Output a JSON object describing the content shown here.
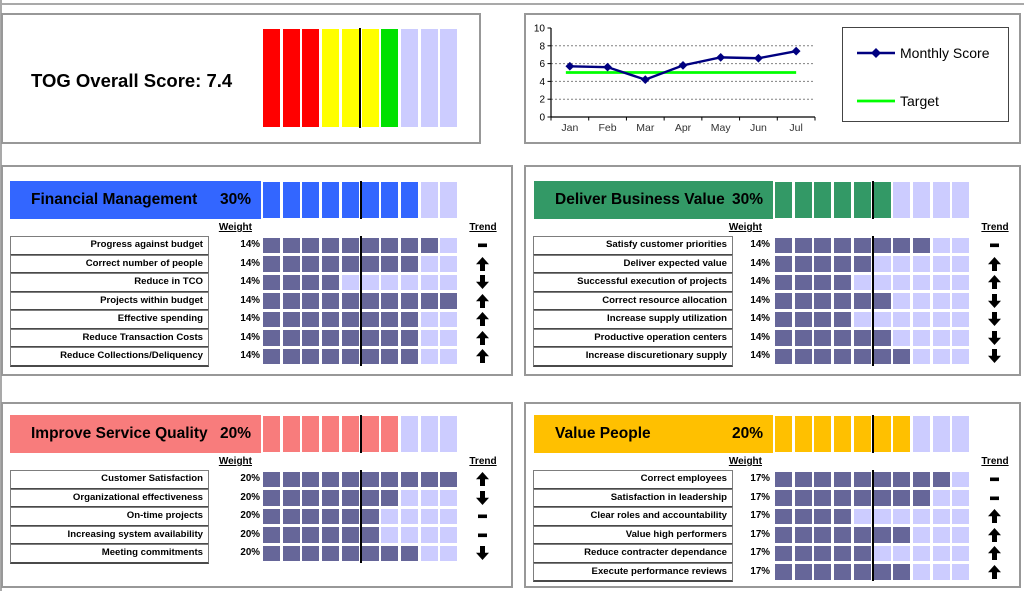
{
  "score_panel": {
    "title": "TOG Overall Score: 7.4",
    "ribbon_cells": [
      "#FF0000",
      "#FF0000",
      "#FF0000",
      "#FFFF00",
      "#FFFF00",
      "#FFFF00",
      "#00E100",
      "#CCCCFF",
      "#CCCCFF",
      "#CCCCFF"
    ],
    "target_marker_position": 5
  },
  "chart_data": {
    "type": "line",
    "x": [
      "Jan",
      "Feb",
      "Mar",
      "Apr",
      "May",
      "Jun",
      "Jul"
    ],
    "series": [
      {
        "name": "Monthly Score",
        "color": "#000080",
        "marker": "diamond",
        "values": [
          5.7,
          5.6,
          4.2,
          5.8,
          6.7,
          6.6,
          7.4
        ]
      },
      {
        "name": "Target",
        "color": "#00FF00",
        "marker": "none",
        "values": [
          5,
          5,
          5,
          5,
          5,
          5,
          5
        ]
      }
    ],
    "ylim": [
      0,
      10
    ],
    "yticks": [
      0,
      2,
      4,
      6,
      8,
      10
    ],
    "grid": "dashed-horizontal",
    "legend_position": "right-box"
  },
  "cells": {
    "filled": "#666699",
    "empty": "#CCCCFF",
    "marker": "#000000",
    "per_row": 10
  },
  "column_headers": {
    "weight": "Weight",
    "trend": "Trend"
  },
  "quadrants": [
    {
      "title": "Financial Management",
      "weight": "30%",
      "color": "#3366FF",
      "header_filled": 8,
      "rows": [
        {
          "label": "Progress against budget",
          "weight": "14%",
          "filled": 9,
          "trend": "flat"
        },
        {
          "label": "Correct number of people",
          "weight": "14%",
          "filled": 8,
          "trend": "up"
        },
        {
          "label": "Reduce in TCO",
          "weight": "14%",
          "filled": 4,
          "trend": "down"
        },
        {
          "label": "Projects within budget",
          "weight": "14%",
          "filled": 10,
          "trend": "up"
        },
        {
          "label": "Effective spending",
          "weight": "14%",
          "filled": 8,
          "trend": "up"
        },
        {
          "label": "Reduce Transaction Costs",
          "weight": "14%",
          "filled": 8,
          "trend": "up"
        },
        {
          "label": "Reduce Collections/Deliquency",
          "weight": "14%",
          "filled": 8,
          "trend": "up"
        }
      ]
    },
    {
      "title": "Deliver Business Value",
      "weight": "30%",
      "color": "#339966",
      "header_filled": 6,
      "rows": [
        {
          "label": "Satisfy customer priorities",
          "weight": "14%",
          "filled": 8,
          "trend": "flat"
        },
        {
          "label": "Deliver expected value",
          "weight": "14%",
          "filled": 5,
          "trend": "up"
        },
        {
          "label": "Successful execution of projects",
          "weight": "14%",
          "filled": 4,
          "trend": "up"
        },
        {
          "label": "Correct resource allocation",
          "weight": "14%",
          "filled": 6,
          "trend": "down"
        },
        {
          "label": "Increase supply utilization",
          "weight": "14%",
          "filled": 4,
          "trend": "down"
        },
        {
          "label": "Productive operation centers",
          "weight": "14%",
          "filled": 6,
          "trend": "down"
        },
        {
          "label": "Increase discuretionary supply",
          "weight": "14%",
          "filled": 7,
          "trend": "down"
        }
      ]
    },
    {
      "title": "Improve Service Quality",
      "weight": "20%",
      "color": "#F87C7C",
      "header_filled": 7,
      "rows": [
        {
          "label": "Customer Satisfaction",
          "weight": "20%",
          "filled": 10,
          "trend": "up"
        },
        {
          "label": "Organizational effectiveness",
          "weight": "20%",
          "filled": 7,
          "trend": "down"
        },
        {
          "label": "On-time projects",
          "weight": "20%",
          "filled": 6,
          "trend": "flat"
        },
        {
          "label": "Increasing system availability",
          "weight": "20%",
          "filled": 6,
          "trend": "flat"
        },
        {
          "label": "Meeting commitments",
          "weight": "20%",
          "filled": 8,
          "trend": "down"
        }
      ]
    },
    {
      "title": "Value People",
      "weight": "20%",
      "color": "#FFC000",
      "header_filled": 7,
      "rows": [
        {
          "label": "Correct employees",
          "weight": "17%",
          "filled": 9,
          "trend": "flat"
        },
        {
          "label": "Satisfaction in leadership",
          "weight": "17%",
          "filled": 8,
          "trend": "flat"
        },
        {
          "label": "Clear roles and accountability",
          "weight": "17%",
          "filled": 4,
          "trend": "up"
        },
        {
          "label": "Value high performers",
          "weight": "17%",
          "filled": 7,
          "trend": "up"
        },
        {
          "label": "Reduce contracter dependance",
          "weight": "17%",
          "filled": 5,
          "trend": "up"
        },
        {
          "label": "Execute performance reviews",
          "weight": "17%",
          "filled": 7,
          "trend": "up"
        }
      ]
    }
  ]
}
